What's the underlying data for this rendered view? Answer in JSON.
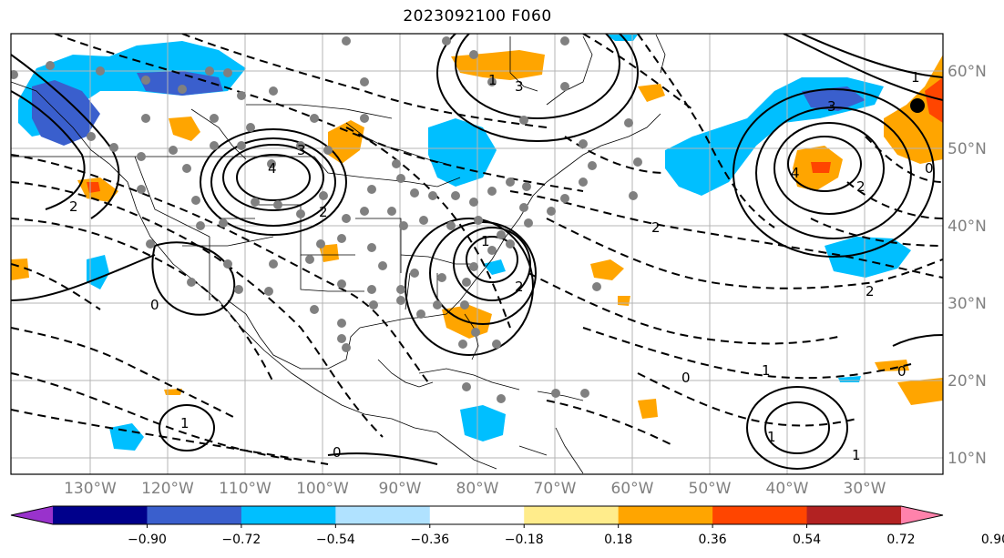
{
  "title": "2023092100 F060",
  "lon_labels": [
    "130°W",
    "120°W",
    "110°W",
    "100°W",
    "90°W",
    "80°W",
    "70°W",
    "60°W",
    "50°W",
    "40°W",
    "30°W"
  ],
  "lat_labels": [
    "60°N",
    "50°N",
    "40°N",
    "30°N",
    "20°N",
    "10°N"
  ],
  "colorbar": {
    "ticks": [
      "−0.90",
      "−0.72",
      "−0.54",
      "−0.36",
      "−0.18",
      "0.18",
      "0.36",
      "0.54",
      "0.72",
      "0.90"
    ],
    "colors": [
      "#9932cc",
      "#00008b",
      "#3a5fcd",
      "#00bfff",
      "#b0e2ff",
      "#ffffff",
      "#ffec8b",
      "#ffa500",
      "#ff4500",
      "#b22222",
      "#ff82ab"
    ]
  },
  "contour_labels": [
    "4",
    "3",
    "2",
    "1",
    "0",
    "1",
    "2",
    "1",
    "4",
    "3",
    "2",
    "1",
    "0",
    "0",
    "2",
    "2",
    "3",
    "1",
    "0",
    "1",
    "2",
    "0",
    "1"
  ]
}
